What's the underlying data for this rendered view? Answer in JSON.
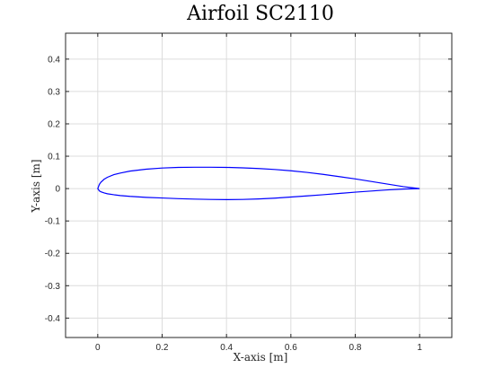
{
  "chart_data": {
    "type": "line",
    "title": "Airfoil SC2110",
    "xlabel": "X-axis [m]",
    "ylabel": "Y-axis [m]",
    "xlim": [
      -0.1,
      1.1
    ],
    "ylim": [
      -0.46,
      0.48
    ],
    "xticks": [
      0,
      0.2,
      0.4,
      0.6,
      0.8,
      1
    ],
    "yticks": [
      -0.4,
      -0.3,
      -0.2,
      -0.1,
      0,
      0.1,
      0.2,
      0.3,
      0.4
    ],
    "xtick_labels": [
      "0",
      "0.2",
      "0.4",
      "0.6",
      "0.8",
      "1"
    ],
    "ytick_labels": [
      "-0.4",
      "-0.3",
      "-0.2",
      "-0.1",
      "0",
      "0.1",
      "0.2",
      "0.3",
      "0.4"
    ],
    "grid": true,
    "series": [
      {
        "color": "#0000ff",
        "x": [
          1.0,
          0.95,
          0.9,
          0.85,
          0.8,
          0.75,
          0.7,
          0.65,
          0.6,
          0.55,
          0.5,
          0.45,
          0.4,
          0.35,
          0.3,
          0.25,
          0.2,
          0.15,
          0.1,
          0.07,
          0.05,
          0.03,
          0.02,
          0.01,
          0.005,
          0.0,
          0.005,
          0.01,
          0.02,
          0.03,
          0.05,
          0.07,
          0.1,
          0.15,
          0.2,
          0.25,
          0.3,
          0.35,
          0.4,
          0.45,
          0.5,
          0.55,
          0.6,
          0.65,
          0.7,
          0.75,
          0.8,
          0.85,
          0.9,
          0.95,
          1.0
        ],
        "y": [
          0.0,
          0.006,
          0.014,
          0.022,
          0.03,
          0.037,
          0.044,
          0.05,
          0.055,
          0.059,
          0.062,
          0.064,
          0.0655,
          0.066,
          0.066,
          0.0655,
          0.0635,
          0.06,
          0.054,
          0.048,
          0.043,
          0.035,
          0.029,
          0.02,
          0.013,
          0.0,
          -0.007,
          -0.01,
          -0.0135,
          -0.016,
          -0.019,
          -0.0215,
          -0.024,
          -0.027,
          -0.029,
          -0.031,
          -0.0325,
          -0.0335,
          -0.034,
          -0.0335,
          -0.032,
          -0.0295,
          -0.026,
          -0.0225,
          -0.019,
          -0.015,
          -0.011,
          -0.0075,
          -0.004,
          -0.0015,
          0.0
        ]
      }
    ]
  }
}
